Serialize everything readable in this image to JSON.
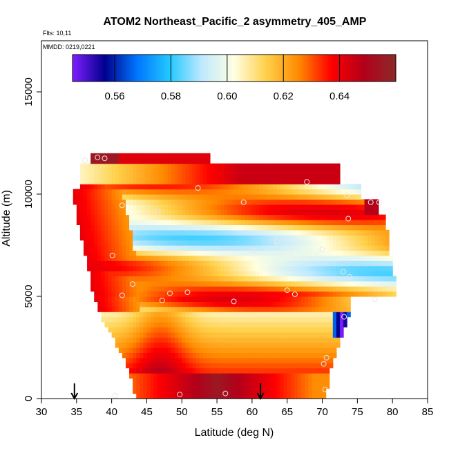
{
  "chart_data": {
    "type": "heatmap",
    "title": "ATOM2 Northeast_Pacific_2 asymmetry_405_AMP",
    "annotations": {
      "flights": "Flts: 10,11",
      "dates": "MMDD: 0219,0221"
    },
    "xlabel": "Latitude (deg N)",
    "ylabel": "Altitude (m)",
    "xlim": [
      30,
      85
    ],
    "ylim": [
      0,
      17500
    ],
    "x_ticks": [
      "30",
      "35",
      "40",
      "45",
      "50",
      "55",
      "60",
      "65",
      "70",
      "75",
      "80",
      "85"
    ],
    "y_ticks": [
      "0",
      "5000",
      "10000",
      "15000"
    ],
    "colorbar": {
      "min": 0.545,
      "max": 0.66,
      "ticks": [
        "0.56",
        "0.58",
        "0.60",
        "0.62",
        "0.64"
      ],
      "colors": [
        "#7f1fff",
        "#00008c",
        "#0077ff",
        "#22c8ff",
        "#bfe9ff",
        "#ffffe2",
        "#ffd04a",
        "#ff8a00",
        "#ff0000",
        "#b3001a",
        "#8b2a2a"
      ]
    },
    "arrows_at_latitude": [
      34.7,
      61.2
    ],
    "profile_upper": [
      [
        36.3,
        12000
      ],
      [
        37.2,
        10700
      ],
      [
        37.6,
        9400
      ],
      [
        38.5,
        8000
      ],
      [
        39.3,
        6800
      ],
      [
        40.0,
        5500
      ],
      [
        41.0,
        4200
      ],
      [
        42.5,
        3200
      ],
      [
        44.0,
        2400
      ],
      [
        45.5,
        1200
      ],
      [
        46.2,
        0
      ]
    ],
    "profile_lower": [
      [
        74.0,
        5000
      ],
      [
        73.5,
        4000
      ],
      [
        72.5,
        3000
      ],
      [
        71.5,
        2000
      ],
      [
        70.6,
        1000
      ],
      [
        70.4,
        0
      ]
    ],
    "sample_points": [
      [
        36.2,
        11650
      ],
      [
        38.0,
        11800
      ],
      [
        39.0,
        11750
      ],
      [
        52.3,
        10300
      ],
      [
        67.8,
        10600
      ],
      [
        73.5,
        9950
      ],
      [
        41.5,
        9450
      ],
      [
        46.6,
        9150
      ],
      [
        58.8,
        9600
      ],
      [
        76.9,
        9600
      ],
      [
        78.1,
        9600
      ],
      [
        73.7,
        8800
      ],
      [
        63.5,
        7700
      ],
      [
        60.2,
        7250
      ],
      [
        70.0,
        7300
      ],
      [
        40.1,
        7000
      ],
      [
        73.0,
        6200
      ],
      [
        43.0,
        5600
      ],
      [
        73.9,
        5950
      ],
      [
        41.5,
        5050
      ],
      [
        48.3,
        5150
      ],
      [
        50.8,
        5200
      ],
      [
        65.0,
        5300
      ],
      [
        66.1,
        5100
      ],
      [
        47.2,
        4800
      ],
      [
        57.4,
        4750
      ],
      [
        77.5,
        4850
      ],
      [
        73.1,
        4000
      ],
      [
        70.6,
        2000
      ],
      [
        70.2,
        1700
      ],
      [
        56.2,
        250
      ],
      [
        49.7,
        200
      ],
      [
        70.4,
        450
      ],
      [
        40.5,
        150
      ]
    ]
  }
}
